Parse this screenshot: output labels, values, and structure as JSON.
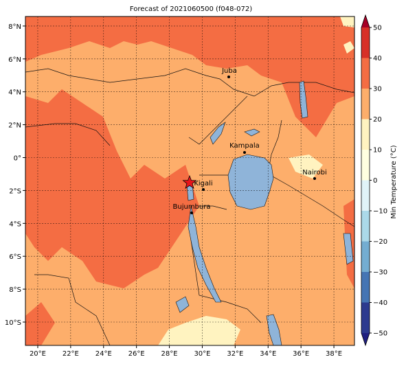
{
  "title": "Forecast of 2021060500 (f048-072)",
  "map": {
    "xlim": [
      19.25,
      39.25
    ],
    "ylim": [
      -11.42,
      8.58
    ],
    "grid": true,
    "xticks": [
      {
        "value": 20,
        "label": "20°E"
      },
      {
        "value": 22,
        "label": "22°E"
      },
      {
        "value": 24,
        "label": "24°E"
      },
      {
        "value": 26,
        "label": "26°E"
      },
      {
        "value": 28,
        "label": "28°E"
      },
      {
        "value": 30,
        "label": "30°E"
      },
      {
        "value": 32,
        "label": "32°E"
      },
      {
        "value": 34,
        "label": "34°E"
      },
      {
        "value": 36,
        "label": "36°E"
      },
      {
        "value": 38,
        "label": "38°E"
      }
    ],
    "yticks": [
      {
        "value": 8,
        "label": "8°N"
      },
      {
        "value": 6,
        "label": "6°N"
      },
      {
        "value": 4,
        "label": "4°N"
      },
      {
        "value": 2,
        "label": "2°N"
      },
      {
        "value": 0,
        "label": "0°"
      },
      {
        "value": -2,
        "label": "2°S"
      },
      {
        "value": -4,
        "label": "4°S"
      },
      {
        "value": -6,
        "label": "6°S"
      },
      {
        "value": -8,
        "label": "8°S"
      },
      {
        "value": -10,
        "label": "10°S"
      }
    ],
    "cities": [
      "Juba",
      "Kampala",
      "Nairobi",
      "Kigali",
      "Bujumbura"
    ]
  },
  "colorbar": {
    "label": "Min Temperature (°C)",
    "ticks": [
      {
        "value": -50,
        "label": "−50"
      },
      {
        "value": -40,
        "label": "−40"
      },
      {
        "value": -30,
        "label": "−30"
      },
      {
        "value": -20,
        "label": "−20"
      },
      {
        "value": -10,
        "label": "−10"
      },
      0,
      10,
      20,
      30,
      40,
      50
    ],
    "colors": [
      "#2c3a8f",
      "#4575b4",
      "#74add1",
      "#abd9e9",
      "#e0f3f8",
      "#ffffe0",
      "#fff3c0",
      "#fdae6b",
      "#f46d43",
      "#d73027"
    ],
    "extend_colors": [
      "#1f1f80",
      "#a50026"
    ]
  }
}
